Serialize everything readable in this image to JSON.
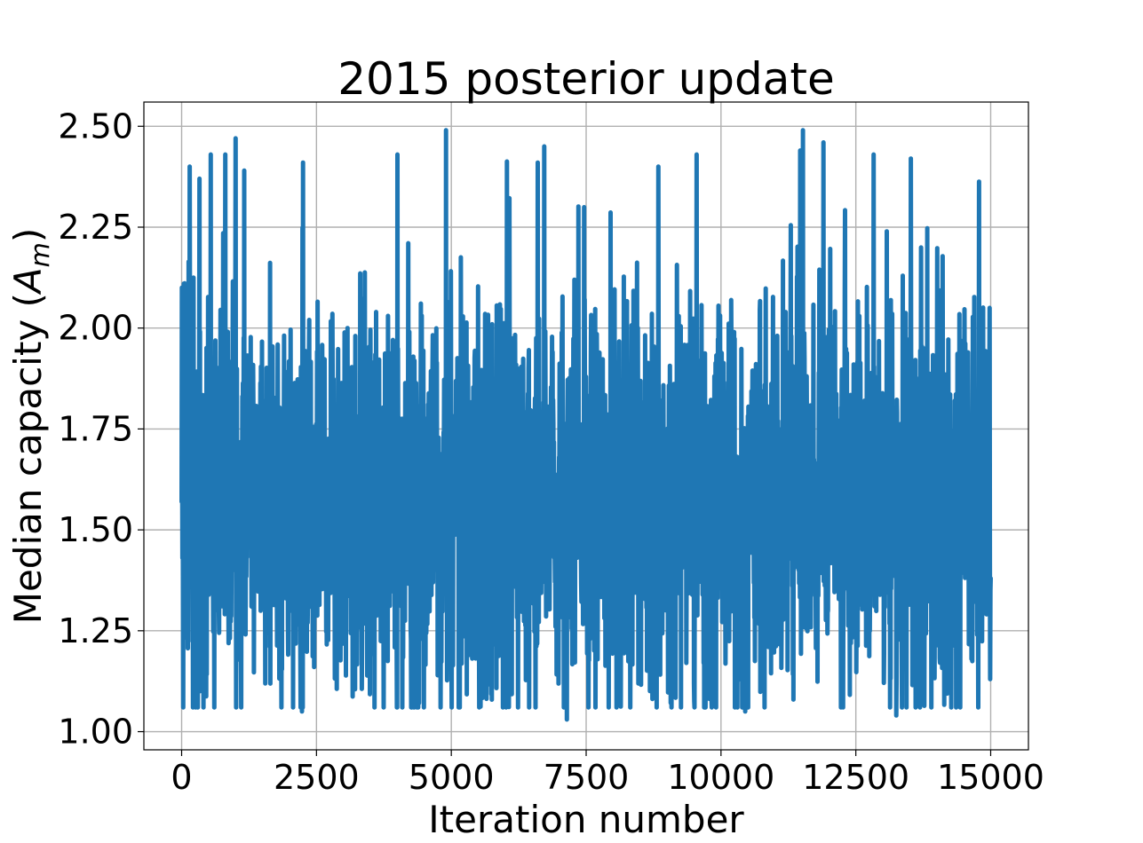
{
  "chart_data": {
    "type": "line",
    "title": "2015 posterior update",
    "xlabel": "Iteration number",
    "ylabel": "Median capacity (A_m)",
    "ylabel_parts": {
      "prefix": "Median capacity (",
      "var": "A",
      "sub": "m",
      "suffix": ")"
    },
    "xlim": [
      -700,
      15700
    ],
    "ylim": [
      0.955,
      2.56
    ],
    "xticks": [
      0,
      2500,
      5000,
      7500,
      10000,
      12500,
      15000
    ],
    "xtick_labels": [
      "0",
      "2500",
      "5000",
      "7500",
      "10000",
      "12500",
      "15000"
    ],
    "yticks": [
      1.0,
      1.25,
      1.5,
      1.75,
      2.0,
      2.25,
      2.5
    ],
    "ytick_labels": [
      "1.00",
      "1.25",
      "1.50",
      "1.75",
      "2.00",
      "2.25",
      "2.50"
    ],
    "grid": true,
    "series": [
      {
        "color": "#1f77b4",
        "n_points": 15000,
        "x_start": 0,
        "x_end": 15000,
        "center": 1.57,
        "typical_band": [
          1.2,
          2.05
        ],
        "min": 1.03,
        "max": 2.49,
        "notable_points": [
          [
            40,
            2.11
          ],
          [
            150,
            2.4
          ],
          [
            330,
            2.37
          ],
          [
            540,
            2.43
          ],
          [
            810,
            2.43
          ],
          [
            1000,
            2.47
          ],
          [
            1160,
            2.39
          ],
          [
            2250,
            2.41
          ],
          [
            2230,
            1.05
          ],
          [
            4000,
            2.43
          ],
          [
            4800,
            1.06
          ],
          [
            4900,
            2.49
          ],
          [
            6600,
            2.41
          ],
          [
            6720,
            2.45
          ],
          [
            7140,
            1.03
          ],
          [
            8840,
            2.4
          ],
          [
            9550,
            2.43
          ],
          [
            10450,
            1.05
          ],
          [
            11470,
            2.44
          ],
          [
            11520,
            2.49
          ],
          [
            11900,
            2.46
          ],
          [
            12830,
            2.43
          ],
          [
            13250,
            1.04
          ],
          [
            13520,
            2.42
          ],
          [
            14980,
            2.05
          ],
          [
            14990,
            1.13
          ]
        ]
      }
    ]
  }
}
